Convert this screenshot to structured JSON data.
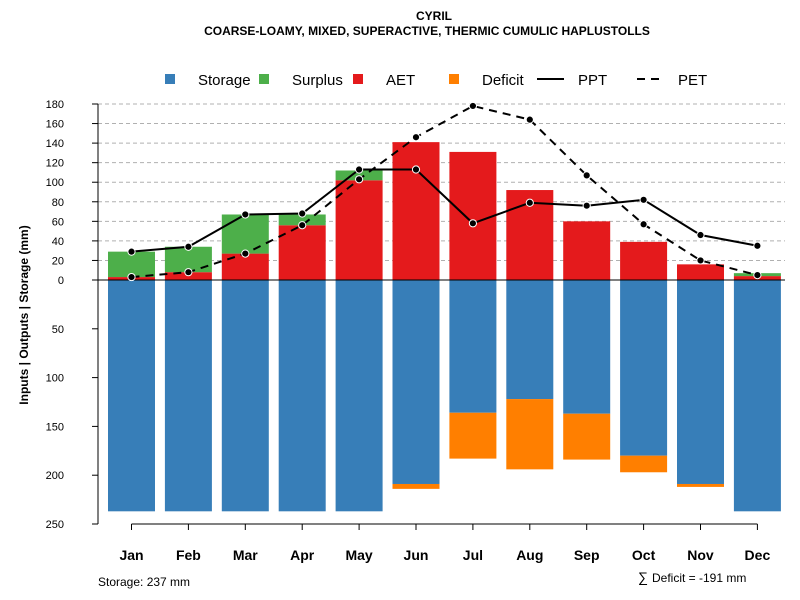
{
  "chart_data": {
    "type": "bar",
    "title": "CYRIL",
    "subtitle": "COARSE-LOAMY, MIXED, SUPERACTIVE, THERMIC CUMULIC HAPLUSTOLLS",
    "ylabel": "Inputs | Outputs | Storage    (mm)",
    "categories": [
      "Jan",
      "Feb",
      "Mar",
      "Apr",
      "May",
      "Jun",
      "Jul",
      "Aug",
      "Sep",
      "Oct",
      "Nov",
      "Dec"
    ],
    "upper_ticks": [
      "0",
      "20",
      "40",
      "60",
      "80",
      "100",
      "120",
      "140",
      "160",
      "180"
    ],
    "lower_ticks": [
      "50",
      "100",
      "150",
      "200",
      "250"
    ],
    "ylim_upper": [
      0,
      180
    ],
    "ylim_lower": [
      0,
      250
    ],
    "legend": [
      {
        "label": "Storage",
        "kind": "box",
        "color": "#377eb8"
      },
      {
        "label": "Surplus",
        "kind": "box",
        "color": "#4daf4a"
      },
      {
        "label": "AET",
        "kind": "box",
        "color": "#e41a1c"
      },
      {
        "label": "Deficit",
        "kind": "box",
        "color": "#ff7f00"
      },
      {
        "label": "PPT",
        "kind": "solid-line",
        "color": "#000000"
      },
      {
        "label": "PET",
        "kind": "dashed-line",
        "color": "#000000"
      }
    ],
    "series": [
      {
        "name": "AET",
        "color": "#e41a1c",
        "values": [
          3,
          8,
          27,
          56,
          102,
          141,
          131,
          92,
          60,
          39,
          16,
          4
        ]
      },
      {
        "name": "Surplus",
        "color": "#4daf4a",
        "values": [
          26,
          26,
          40,
          11,
          10,
          0,
          0,
          0,
          0,
          0,
          0,
          3
        ]
      },
      {
        "name": "Storage",
        "color": "#377eb8",
        "values": [
          237,
          237,
          237,
          237,
          237,
          209,
          136,
          122,
          137,
          180,
          209,
          237
        ]
      },
      {
        "name": "Deficit",
        "color": "#ff7f00",
        "values": [
          0,
          0,
          0,
          0,
          0,
          5,
          47,
          72,
          47,
          17,
          3,
          0
        ]
      },
      {
        "name": "PPT",
        "color": "#000000",
        "values": [
          29,
          34,
          67,
          68,
          113,
          113,
          58,
          79,
          76,
          82,
          46,
          35
        ]
      },
      {
        "name": "PET",
        "color": "#000000",
        "values": [
          3,
          8,
          27,
          56,
          103,
          146,
          178,
          164,
          107,
          57,
          20,
          5
        ]
      }
    ]
  },
  "footer": {
    "storage_note": "Storage: 237 mm",
    "deficit_symbol": "∑",
    "deficit_note": "Deficit = -191 mm"
  }
}
